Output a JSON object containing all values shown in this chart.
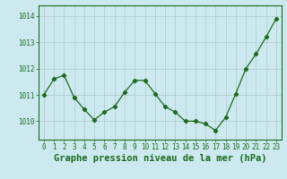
{
  "x": [
    0,
    1,
    2,
    3,
    4,
    5,
    6,
    7,
    8,
    9,
    10,
    11,
    12,
    13,
    14,
    15,
    16,
    17,
    18,
    19,
    20,
    21,
    22,
    23
  ],
  "y": [
    1011.0,
    1011.6,
    1011.75,
    1010.9,
    1010.45,
    1010.05,
    1010.35,
    1010.55,
    1011.1,
    1011.55,
    1011.55,
    1011.05,
    1010.55,
    1010.35,
    1010.0,
    1010.0,
    1009.9,
    1009.65,
    1010.15,
    1011.05,
    1012.0,
    1012.55,
    1013.2,
    1013.9
  ],
  "line_color": "#1a6b1a",
  "marker": "D",
  "marker_size": 2.2,
  "bg_color": "#cce9f0",
  "grid_color": "#b0c8cc",
  "ylabel_ticks": [
    1010,
    1011,
    1012,
    1013,
    1014
  ],
  "xlabel": "Graphe pression niveau de la mer (hPa)",
  "xlabel_fontsize": 7.5,
  "tick_fontsize": 5.5,
  "ylim": [
    1009.3,
    1014.4
  ],
  "xlim": [
    -0.5,
    23.5
  ]
}
